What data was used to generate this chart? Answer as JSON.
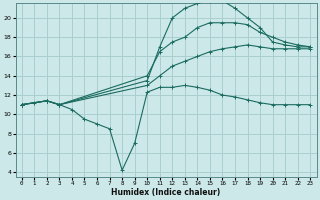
{
  "xlabel": "Humidex (Indice chaleur)",
  "bg_color": "#cce8e8",
  "grid_color": "#aacece",
  "line_color": "#1a6b60",
  "xlim": [
    -0.5,
    23.5
  ],
  "ylim": [
    3.5,
    21.5
  ],
  "xticks": [
    0,
    1,
    2,
    3,
    4,
    5,
    6,
    7,
    8,
    9,
    10,
    11,
    12,
    13,
    14,
    15,
    16,
    17,
    18,
    19,
    20,
    21,
    22,
    23
  ],
  "yticks": [
    4,
    6,
    8,
    10,
    12,
    14,
    16,
    18,
    20
  ],
  "curve_dip_x": [
    0,
    1,
    2,
    3,
    4,
    5,
    6,
    7,
    8,
    9,
    10,
    11,
    12,
    13,
    14,
    15,
    16,
    17,
    18,
    19,
    20,
    21,
    22,
    23
  ],
  "curve_dip_y": [
    11.0,
    11.2,
    11.4,
    11.0,
    10.5,
    9.5,
    9.0,
    8.5,
    4.2,
    7.0,
    12.3,
    12.8,
    12.8,
    13.0,
    12.8,
    12.5,
    12.0,
    11.8,
    11.5,
    11.2,
    11.0,
    11.0,
    11.0,
    11.0
  ],
  "curve_low_x": [
    0,
    2,
    3,
    10,
    11,
    12,
    13,
    14,
    15,
    16,
    17,
    18,
    19,
    20,
    21,
    22,
    23
  ],
  "curve_low_y": [
    11.0,
    11.4,
    11.0,
    13.0,
    14.0,
    15.0,
    15.5,
    16.0,
    16.5,
    16.8,
    17.0,
    17.2,
    17.0,
    16.8,
    16.8,
    16.8,
    16.8
  ],
  "curve_mid_x": [
    0,
    2,
    3,
    10,
    11,
    12,
    13,
    14,
    15,
    16,
    17,
    18,
    19,
    20,
    21,
    22,
    23
  ],
  "curve_mid_y": [
    11.0,
    11.4,
    11.0,
    14.0,
    16.5,
    17.5,
    18.0,
    19.0,
    19.5,
    19.5,
    19.5,
    19.3,
    18.5,
    18.0,
    17.5,
    17.2,
    17.0
  ],
  "curve_high_x": [
    0,
    2,
    3,
    10,
    11,
    12,
    13,
    14,
    15,
    16,
    17,
    18,
    19,
    20,
    21,
    22,
    23
  ],
  "curve_high_y": [
    11.0,
    11.4,
    11.0,
    13.5,
    17.0,
    20.0,
    21.0,
    21.5,
    21.8,
    21.8,
    21.0,
    20.0,
    19.0,
    17.5,
    17.2,
    17.0,
    17.0
  ]
}
